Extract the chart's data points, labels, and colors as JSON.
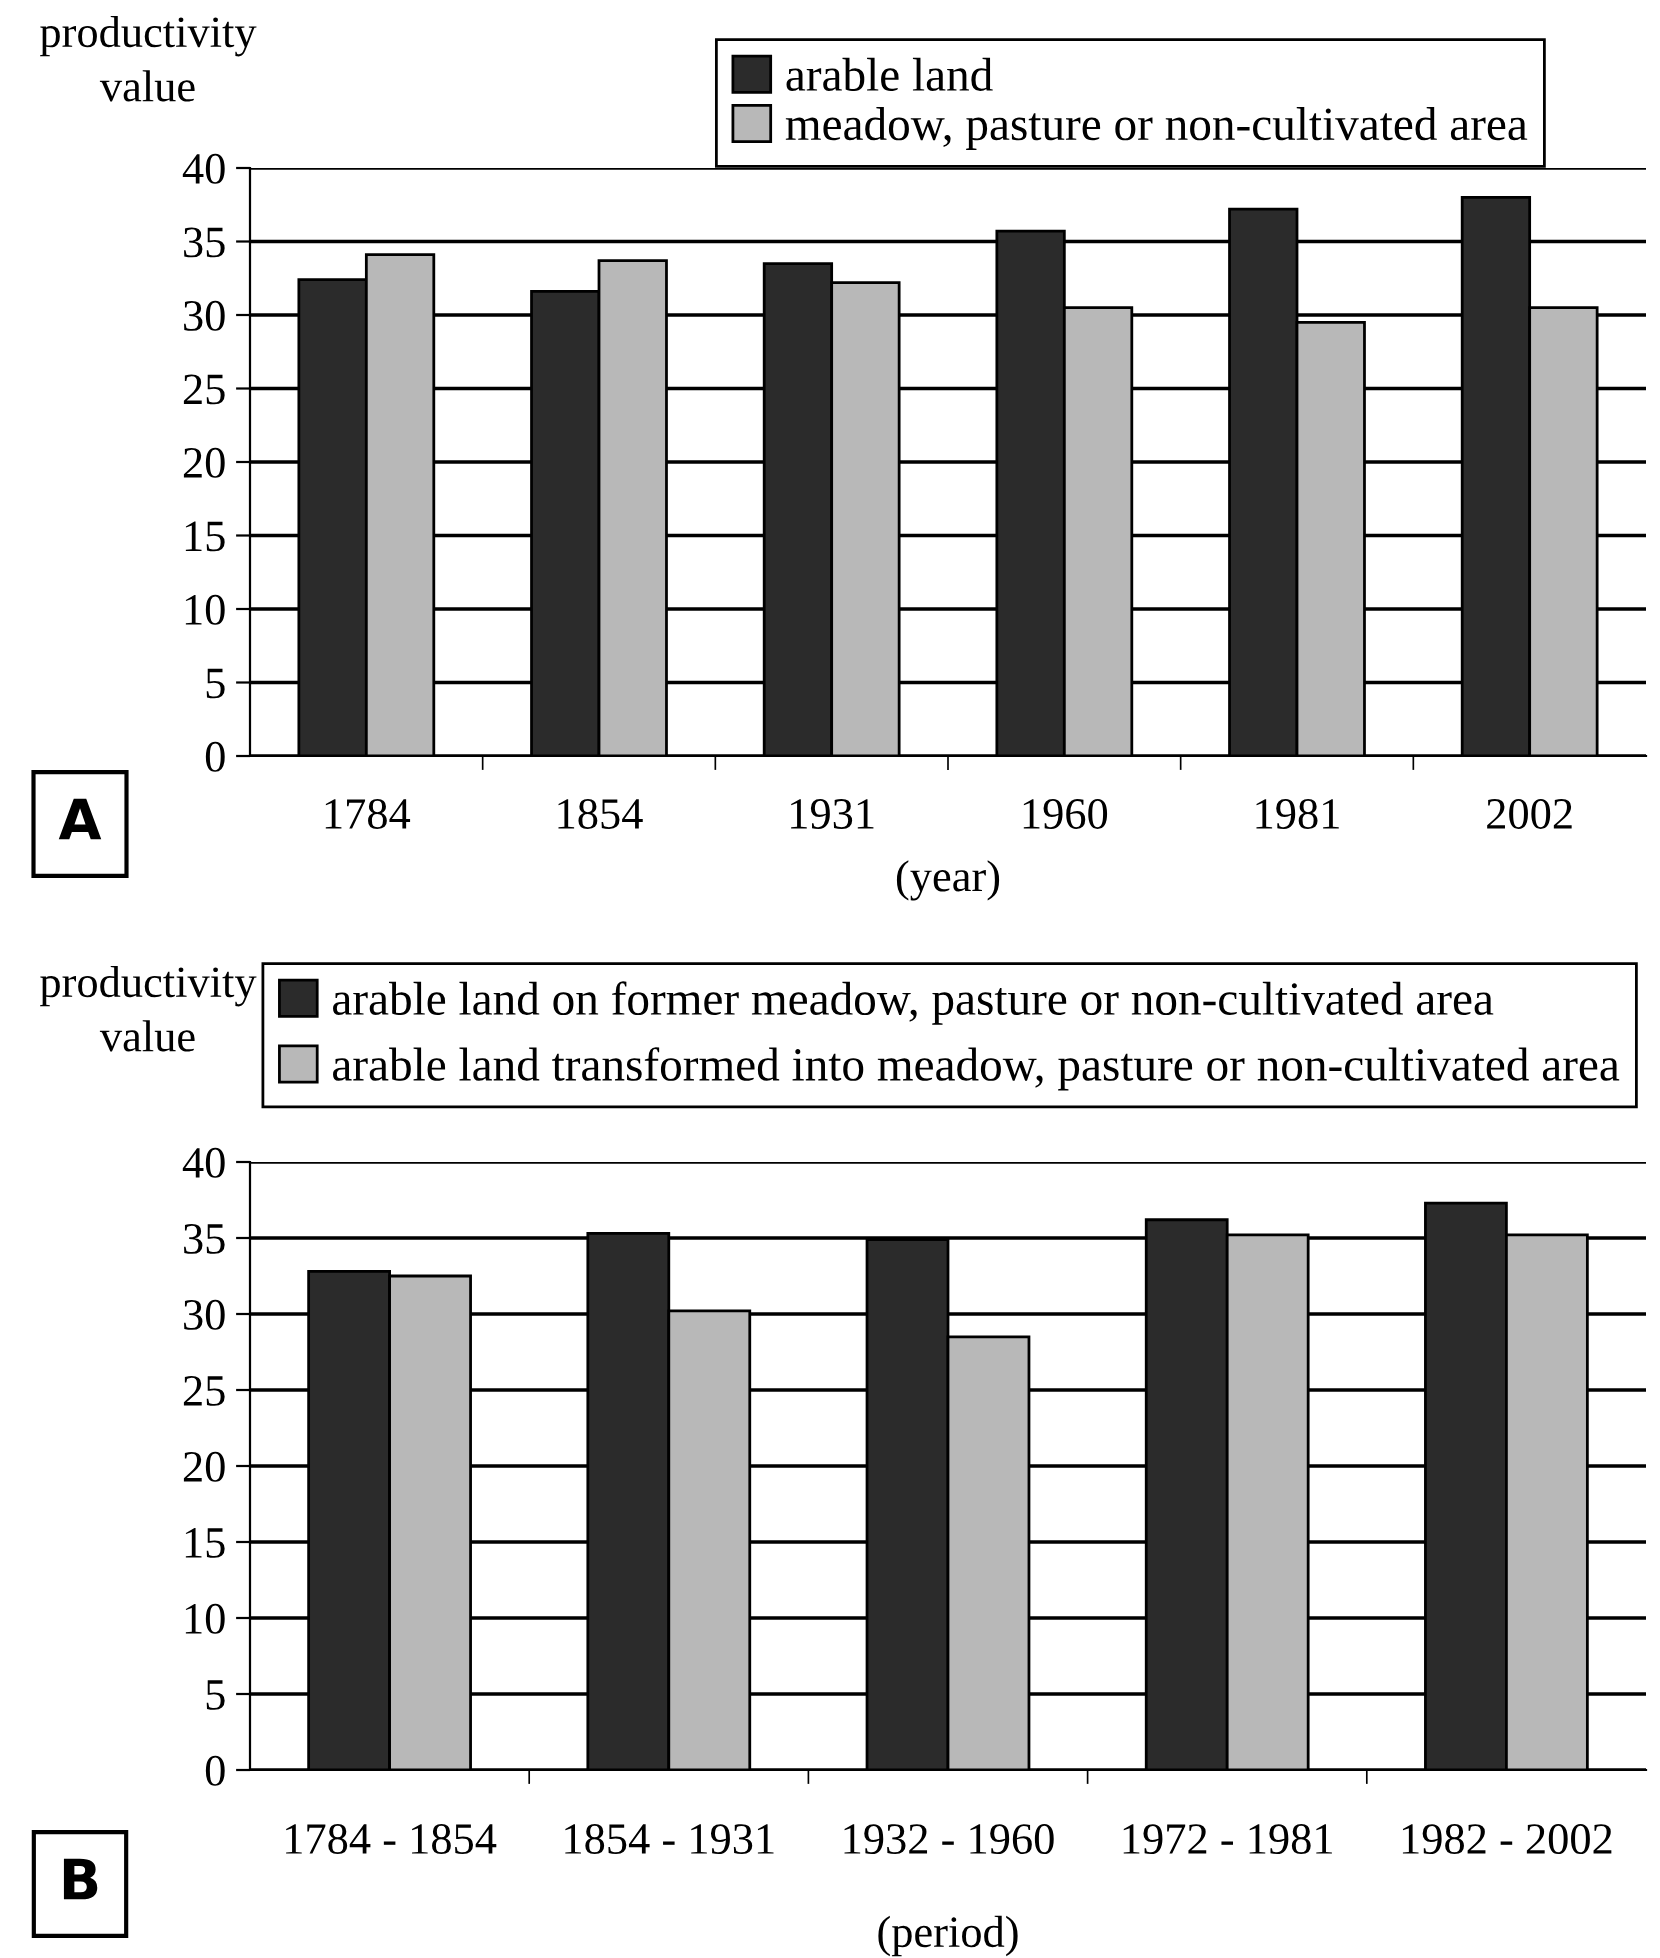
{
  "chart_data": [
    {
      "type": "bar",
      "ylabel": "productivity\nvalue",
      "xlabel": "(year)",
      "annotations": [
        "A"
      ],
      "categories": [
        "1784",
        "1854",
        "1931",
        "1960",
        "1981",
        "2002"
      ],
      "series": [
        {
          "name": "arable land",
          "color": "#2b2b2b",
          "values": [
            32.4,
            31.6,
            33.5,
            35.7,
            37.2,
            38.0
          ]
        },
        {
          "name": "meadow, pasture or non-cultivated area",
          "color": "#b8b8b8",
          "values": [
            34.1,
            33.7,
            32.2,
            30.5,
            29.5,
            30.5
          ]
        }
      ],
      "ylim": [
        0,
        40
      ],
      "yticks": [
        0,
        5,
        10,
        15,
        20,
        25,
        30,
        35,
        40
      ],
      "grid": "y",
      "legend": "top"
    },
    {
      "type": "bar",
      "ylabel": "productivity\nvalue",
      "xlabel": "(period)",
      "annotations": [
        "B"
      ],
      "categories": [
        "1784 - 1854",
        "1854 - 1931",
        "1932 - 1960",
        "1972 - 1981",
        "1982 - 2002"
      ],
      "series": [
        {
          "name": "arable land on former meadow, pasture or non-cultivated area",
          "color": "#2b2b2b",
          "values": [
            32.8,
            35.3,
            34.9,
            36.2,
            37.3
          ]
        },
        {
          "name": "arable land transformed into meadow, pasture or non-cultivated area",
          "color": "#b8b8b8",
          "values": [
            32.5,
            30.2,
            28.5,
            35.2,
            35.2
          ]
        }
      ],
      "ylim": [
        0,
        40
      ],
      "yticks": [
        0,
        5,
        10,
        15,
        20,
        25,
        30,
        35,
        40
      ],
      "grid": "y",
      "legend": "top"
    }
  ]
}
